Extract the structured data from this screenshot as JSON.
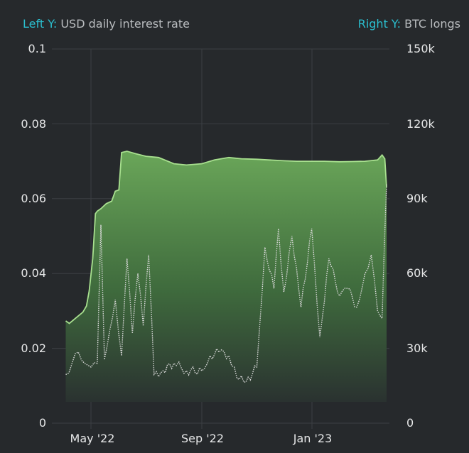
{
  "legend": {
    "left_key": "Left Y:",
    "left_label": "USD daily interest rate",
    "right_key": "Right Y:",
    "right_label": "BTC longs"
  },
  "colors": {
    "background": "#26292c",
    "legend_key": "#2bbfcf",
    "area_line": "#a8e08f",
    "area_fill_top": "#6aa659",
    "area_fill_bottom": "#2a3230",
    "dotted_line": "#d9d9d9",
    "grid": "#3c3f43"
  },
  "axes": {
    "left_ticks": [
      "0.1",
      "0.08",
      "0.06",
      "0.04",
      "0.02",
      "0"
    ],
    "right_ticks": [
      "150k",
      "120k",
      "90k",
      "60k",
      "30k",
      "0"
    ],
    "x_ticks": [
      "May '22",
      "Sep '22",
      "Jan '23"
    ]
  },
  "chart_data": {
    "type": "line",
    "title": "",
    "xlabel": "",
    "ylabel": "USD daily interest rate",
    "ylabel_right": "BTC longs",
    "ylim": [
      0,
      0.1
    ],
    "ylim_right": [
      0,
      150000
    ],
    "grid": true,
    "legend_position": "top",
    "x_ticks": [
      "May '22",
      "Sep '22",
      "Jan '23"
    ],
    "left_ticks": [
      0,
      0.02,
      0.04,
      0.06,
      0.08,
      0.1
    ],
    "right_ticks": [
      0,
      30000,
      60000,
      90000,
      120000,
      150000
    ],
    "series": [
      {
        "name": "BTC longs",
        "axis": "right",
        "style": "area",
        "x": [
          "2022-04-03",
          "2022-04-07",
          "2022-04-12",
          "2022-04-17",
          "2022-04-22",
          "2022-04-26",
          "2022-04-29",
          "2022-05-03",
          "2022-05-06",
          "2022-05-08",
          "2022-05-12",
          "2022-05-18",
          "2022-05-24",
          "2022-05-28",
          "2022-06-01",
          "2022-06-04",
          "2022-06-10",
          "2022-06-20",
          "2022-07-01",
          "2022-07-15",
          "2022-08-01",
          "2022-08-15",
          "2022-09-01",
          "2022-09-15",
          "2022-10-01",
          "2022-10-15",
          "2022-11-01",
          "2022-11-15",
          "2022-12-01",
          "2022-12-15",
          "2023-01-01",
          "2023-01-15",
          "2023-02-01",
          "2023-02-15",
          "2023-03-01",
          "2023-03-15",
          "2023-03-20",
          "2023-03-23",
          "2023-03-25"
        ],
        "values": [
          41000,
          40000,
          41500,
          43000,
          44500,
          47000,
          53000,
          66000,
          84000,
          85000,
          86000,
          88000,
          89000,
          93000,
          93500,
          108500,
          109000,
          108000,
          107000,
          106500,
          104000,
          103500,
          104000,
          105500,
          106500,
          106000,
          105800,
          105500,
          105200,
          105000,
          105000,
          105000,
          104800,
          104900,
          105000,
          105500,
          107500,
          106000,
          94500
        ]
      },
      {
        "name": "USD daily interest rate",
        "axis": "left",
        "style": "dotted",
        "x": [
          "2022-04-03",
          "2022-04-10",
          "2022-04-17",
          "2022-04-24",
          "2022-05-01",
          "2022-05-08",
          "2022-05-12",
          "2022-05-16",
          "2022-05-22",
          "2022-05-28",
          "2022-06-04",
          "2022-06-10",
          "2022-06-16",
          "2022-06-22",
          "2022-06-28",
          "2022-07-04",
          "2022-07-10",
          "2022-07-20",
          "2022-08-01",
          "2022-08-15",
          "2022-09-01",
          "2022-09-10",
          "2022-09-20",
          "2022-10-01",
          "2022-10-10",
          "2022-10-20",
          "2022-11-01",
          "2022-11-10",
          "2022-11-20",
          "2022-11-25",
          "2022-12-01",
          "2022-12-10",
          "2022-12-20",
          "2023-01-01",
          "2023-01-10",
          "2023-01-20",
          "2023-02-01",
          "2023-02-10",
          "2023-02-20",
          "2023-03-01",
          "2023-03-08",
          "2023-03-15",
          "2023-03-20",
          "2023-03-25"
        ],
        "values": [
          0.013,
          0.016,
          0.019,
          0.016,
          0.015,
          0.016,
          0.053,
          0.017,
          0.025,
          0.033,
          0.018,
          0.044,
          0.024,
          0.04,
          0.026,
          0.045,
          0.013,
          0.014,
          0.016,
          0.014,
          0.014,
          0.018,
          0.019,
          0.018,
          0.012,
          0.011,
          0.015,
          0.047,
          0.036,
          0.052,
          0.035,
          0.05,
          0.031,
          0.052,
          0.023,
          0.044,
          0.034,
          0.036,
          0.031,
          0.04,
          0.045,
          0.03,
          0.028,
          0.064
        ]
      }
    ]
  }
}
